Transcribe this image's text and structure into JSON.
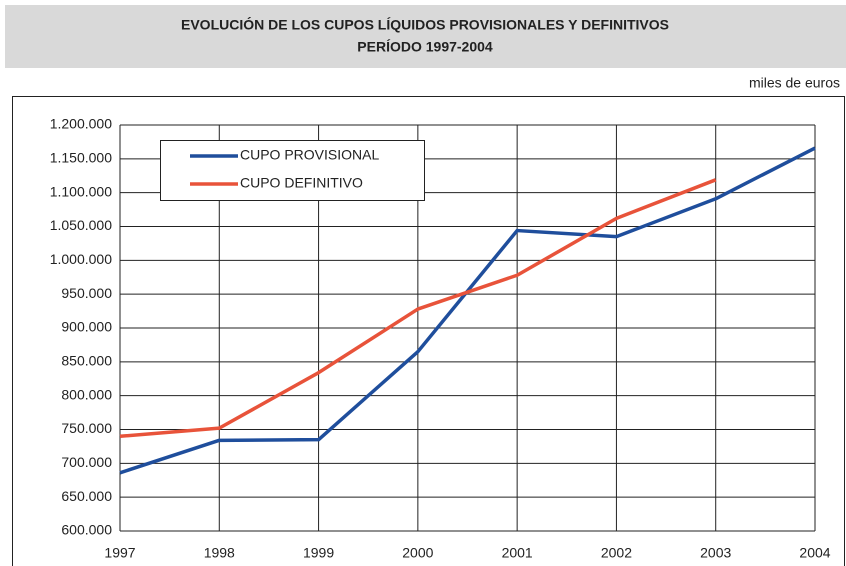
{
  "chart_data": {
    "type": "line",
    "title": "EVOLUCIÓN DE LOS CUPOS LÍQUIDOS PROVISIONALES Y DEFINITIVOS",
    "subtitle": "PERÍODO 1997-2004",
    "unit_label": "miles de euros",
    "categories": [
      "1997",
      "1998",
      "1999",
      "2000",
      "2001",
      "2002",
      "2003",
      "2004"
    ],
    "series": [
      {
        "name": "CUPO PROVISIONAL",
        "color": "#1f4e9c",
        "values": [
          686000,
          734000,
          735000,
          865000,
          1044000,
          1035000,
          1091000,
          1166000
        ]
      },
      {
        "name": "CUPO DEFINITIVO",
        "color": "#e8533a",
        "values": [
          740000,
          752000,
          834000,
          928000,
          978000,
          1062000,
          1119000,
          null
        ]
      }
    ],
    "ylim": [
      600000,
      1200000
    ],
    "yticks": [
      {
        "value": 600000,
        "label": "600.000"
      },
      {
        "value": 650000,
        "label": "650.000"
      },
      {
        "value": 700000,
        "label": "700.000"
      },
      {
        "value": 750000,
        "label": "750.000"
      },
      {
        "value": 800000,
        "label": "800.000"
      },
      {
        "value": 850000,
        "label": "850.000"
      },
      {
        "value": 900000,
        "label": "900.000"
      },
      {
        "value": 950000,
        "label": "950.000"
      },
      {
        "value": 1000000,
        "label": "1.000.000"
      },
      {
        "value": 1050000,
        "label": "1.050.000"
      },
      {
        "value": 1100000,
        "label": "1.100.000"
      },
      {
        "value": 1150000,
        "label": "1.150.000"
      },
      {
        "value": 1200000,
        "label": "1.200.000"
      }
    ],
    "grid": true,
    "legend": "top-left"
  }
}
